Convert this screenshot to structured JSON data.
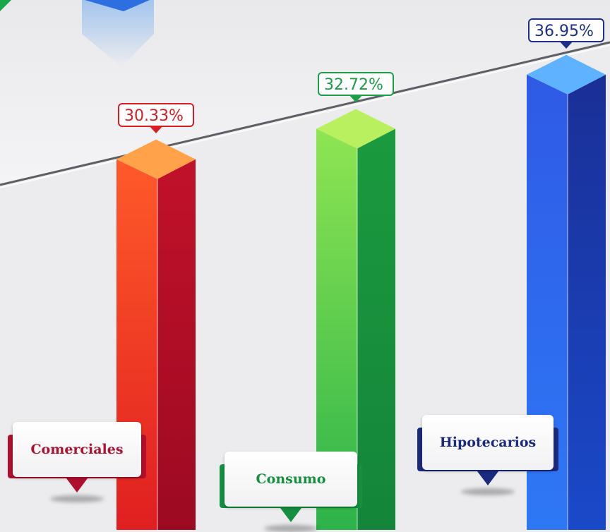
{
  "chart_data": {
    "type": "bar",
    "categories": [
      "Comerciales",
      "Consumo",
      "Hipotecarios"
    ],
    "values": [
      30.33,
      32.72,
      36.95
    ],
    "value_labels": [
      "30.33%",
      "32.72%",
      "36.95%"
    ],
    "colors": {
      "Comerciales": "#e8222a",
      "Consumo": "#1fa94a",
      "Hipotecarios": "#1f3c9e"
    },
    "label_text_colors": {
      "Comerciales": "#d91d25",
      "Consumo": "#1a9e46",
      "Hipotecarios": "#1c2f8a"
    },
    "category_text_colors": {
      "Comerciales": "#b0102e",
      "Consumo": "#149040",
      "Hipotecarios": "#1a2a7e"
    },
    "style": "3d-bars",
    "legend": "none",
    "grid": false
  }
}
